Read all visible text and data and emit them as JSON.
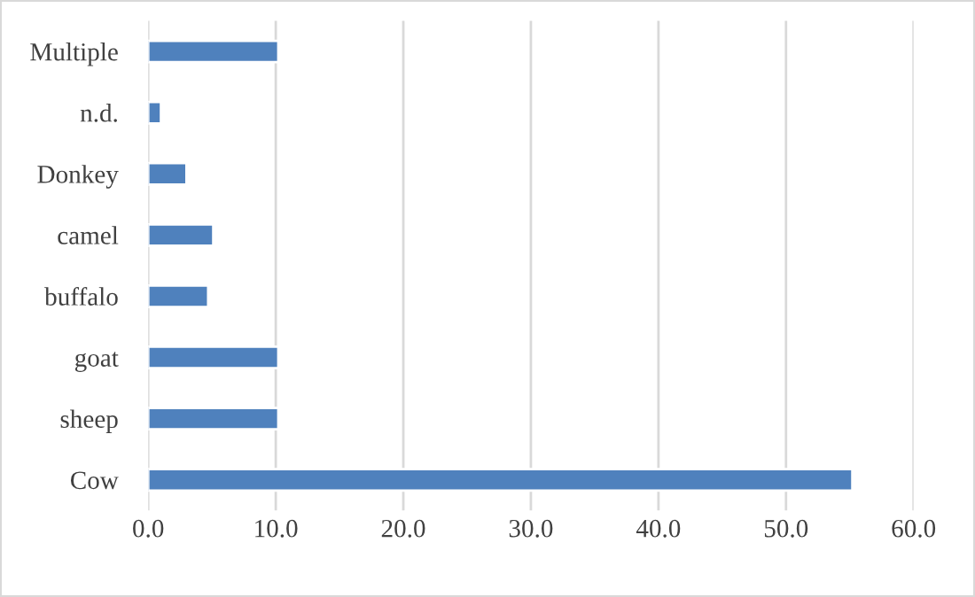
{
  "chart_data": {
    "type": "bar",
    "orientation": "horizontal",
    "categories": [
      "Multiple",
      "n.d.",
      "Donkey",
      "camel",
      "buffalo",
      "goat",
      "sheep",
      "Cow"
    ],
    "values": [
      10.2,
      1.0,
      3.0,
      5.1,
      4.7,
      10.2,
      10.2,
      55.2
    ],
    "color": "#4f81bd",
    "xlim": [
      0,
      60
    ],
    "xticks": [
      {
        "value": 0,
        "label": "0.0"
      },
      {
        "value": 10,
        "label": "10.0"
      },
      {
        "value": 20,
        "label": "20.0"
      },
      {
        "value": 30,
        "label": "30.0"
      },
      {
        "value": 40,
        "label": "40.0"
      },
      {
        "value": 50,
        "label": "50.0"
      },
      {
        "value": 60,
        "label": "60.0"
      }
    ],
    "grid": "x",
    "legend": false
  }
}
